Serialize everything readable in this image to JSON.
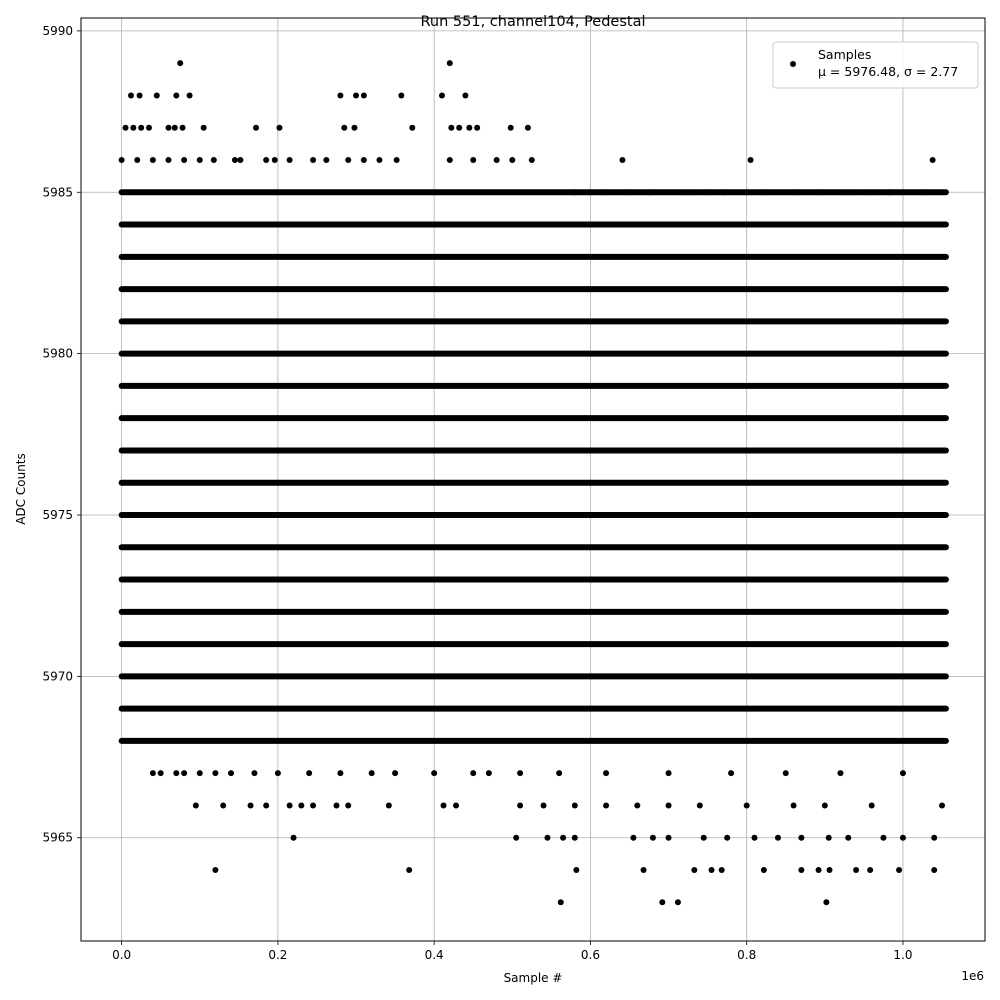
{
  "chart_data": {
    "type": "scatter",
    "title": "Run 551, channel104, Pedestal",
    "xlabel": "Sample #",
    "ylabel": "ADC Counts",
    "x_multiplier_label": "1e6",
    "x_tick_labels": [
      "0.0",
      "0.2",
      "0.4",
      "0.6",
      "0.8",
      "1.0"
    ],
    "x_ticks": [
      0,
      200000,
      400000,
      600000,
      800000,
      1000000
    ],
    "y_ticks": [
      5965,
      5970,
      5975,
      5980,
      5985,
      5990
    ],
    "y_tick_labels": [
      "5965",
      "5970",
      "5975",
      "5980",
      "5985",
      "5990"
    ],
    "xlim": [
      -52000,
      1105000
    ],
    "ylim": [
      5961.8,
      5990.4
    ],
    "grid": true,
    "legend_position": "top-right",
    "series": [
      {
        "name": "Samples",
        "label_line2": "μ = 5976.48, σ = 2.77",
        "color": "#000000",
        "marker": "circle",
        "x_range": [
          0,
          1055000
        ],
        "dense_levels": [
          5968,
          5969,
          5970,
          5971,
          5972,
          5973,
          5974,
          5975,
          5976,
          5977,
          5978,
          5979,
          5980,
          5981,
          5982,
          5983,
          5984,
          5985
        ],
        "sparse_points": [
          [
            75000,
            5989
          ],
          [
            420000,
            5989
          ],
          [
            12000,
            5988
          ],
          [
            23000,
            5988
          ],
          [
            45000,
            5988
          ],
          [
            70000,
            5988
          ],
          [
            87000,
            5988
          ],
          [
            280000,
            5988
          ],
          [
            300000,
            5988
          ],
          [
            310000,
            5988
          ],
          [
            358000,
            5988
          ],
          [
            410000,
            5988
          ],
          [
            440000,
            5988
          ],
          [
            5000,
            5987
          ],
          [
            15000,
            5987
          ],
          [
            25000,
            5987
          ],
          [
            35000,
            5987
          ],
          [
            60000,
            5987
          ],
          [
            68000,
            5987
          ],
          [
            78000,
            5987
          ],
          [
            105000,
            5987
          ],
          [
            172000,
            5987
          ],
          [
            202000,
            5987
          ],
          [
            285000,
            5987
          ],
          [
            298000,
            5987
          ],
          [
            372000,
            5987
          ],
          [
            422000,
            5987
          ],
          [
            432000,
            5987
          ],
          [
            445000,
            5987
          ],
          [
            455000,
            5987
          ],
          [
            498000,
            5987
          ],
          [
            520000,
            5987
          ],
          [
            0,
            5986
          ],
          [
            20000,
            5986
          ],
          [
            40000,
            5986
          ],
          [
            60000,
            5986
          ],
          [
            80000,
            5986
          ],
          [
            100000,
            5986
          ],
          [
            118000,
            5986
          ],
          [
            145000,
            5986
          ],
          [
            152000,
            5986
          ],
          [
            185000,
            5986
          ],
          [
            196000,
            5986
          ],
          [
            215000,
            5986
          ],
          [
            245000,
            5986
          ],
          [
            262000,
            5986
          ],
          [
            290000,
            5986
          ],
          [
            310000,
            5986
          ],
          [
            330000,
            5986
          ],
          [
            352000,
            5986
          ],
          [
            420000,
            5986
          ],
          [
            450000,
            5986
          ],
          [
            480000,
            5986
          ],
          [
            500000,
            5986
          ],
          [
            525000,
            5986
          ],
          [
            641000,
            5986
          ],
          [
            805000,
            5986
          ],
          [
            1038000,
            5986
          ],
          [
            580000,
            5985
          ],
          [
            620000,
            5985
          ],
          [
            650000,
            5985
          ],
          [
            675000,
            5985
          ],
          [
            725000,
            5985
          ],
          [
            752000,
            5985
          ],
          [
            770000,
            5985
          ],
          [
            800000,
            5985
          ],
          [
            820000,
            5985
          ],
          [
            862000,
            5985
          ],
          [
            895000,
            5985
          ],
          [
            930000,
            5985
          ],
          [
            960000,
            5985
          ],
          [
            982000,
            5985
          ],
          [
            1025000,
            5985
          ],
          [
            40000,
            5967
          ],
          [
            50000,
            5967
          ],
          [
            70000,
            5967
          ],
          [
            80000,
            5967
          ],
          [
            100000,
            5967
          ],
          [
            120000,
            5967
          ],
          [
            140000,
            5967
          ],
          [
            170000,
            5967
          ],
          [
            200000,
            5967
          ],
          [
            240000,
            5967
          ],
          [
            280000,
            5967
          ],
          [
            320000,
            5967
          ],
          [
            350000,
            5967
          ],
          [
            400000,
            5967
          ],
          [
            450000,
            5967
          ],
          [
            470000,
            5967
          ],
          [
            510000,
            5967
          ],
          [
            560000,
            5967
          ],
          [
            620000,
            5967
          ],
          [
            700000,
            5967
          ],
          [
            780000,
            5967
          ],
          [
            850000,
            5967
          ],
          [
            920000,
            5967
          ],
          [
            1000000,
            5967
          ],
          [
            95000,
            5966
          ],
          [
            130000,
            5966
          ],
          [
            165000,
            5966
          ],
          [
            185000,
            5966
          ],
          [
            215000,
            5966
          ],
          [
            230000,
            5966
          ],
          [
            245000,
            5966
          ],
          [
            275000,
            5966
          ],
          [
            290000,
            5966
          ],
          [
            342000,
            5966
          ],
          [
            412000,
            5966
          ],
          [
            428000,
            5966
          ],
          [
            510000,
            5966
          ],
          [
            540000,
            5966
          ],
          [
            580000,
            5966
          ],
          [
            620000,
            5966
          ],
          [
            660000,
            5966
          ],
          [
            700000,
            5966
          ],
          [
            740000,
            5966
          ],
          [
            800000,
            5966
          ],
          [
            860000,
            5966
          ],
          [
            900000,
            5966
          ],
          [
            960000,
            5966
          ],
          [
            1050000,
            5966
          ],
          [
            220000,
            5965
          ],
          [
            505000,
            5965
          ],
          [
            545000,
            5965
          ],
          [
            565000,
            5965
          ],
          [
            580000,
            5965
          ],
          [
            655000,
            5965
          ],
          [
            680000,
            5965
          ],
          [
            700000,
            5965
          ],
          [
            745000,
            5965
          ],
          [
            775000,
            5965
          ],
          [
            810000,
            5965
          ],
          [
            840000,
            5965
          ],
          [
            870000,
            5965
          ],
          [
            905000,
            5965
          ],
          [
            930000,
            5965
          ],
          [
            975000,
            5965
          ],
          [
            1000000,
            5965
          ],
          [
            1040000,
            5965
          ],
          [
            120000,
            5964
          ],
          [
            368000,
            5964
          ],
          [
            582000,
            5964
          ],
          [
            668000,
            5964
          ],
          [
            733000,
            5964
          ],
          [
            755000,
            5964
          ],
          [
            768000,
            5964
          ],
          [
            822000,
            5964
          ],
          [
            870000,
            5964
          ],
          [
            892000,
            5964
          ],
          [
            906000,
            5964
          ],
          [
            940000,
            5964
          ],
          [
            958000,
            5964
          ],
          [
            995000,
            5964
          ],
          [
            1040000,
            5964
          ],
          [
            562000,
            5963
          ],
          [
            692000,
            5963
          ],
          [
            712000,
            5963
          ],
          [
            902000,
            5963
          ]
        ]
      }
    ]
  }
}
